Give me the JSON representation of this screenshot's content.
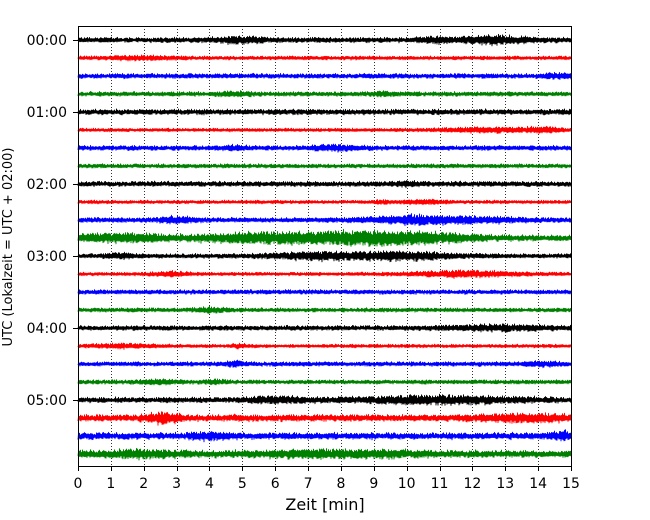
{
  "chart_data": {
    "type": "line",
    "title": "",
    "xlabel": "Zeit  [min]",
    "ylabel": "UTC (Lokalzeit = UTC + 02:00)",
    "xlim": [
      0,
      15
    ],
    "x_ticks": [
      0,
      1,
      2,
      3,
      4,
      5,
      6,
      7,
      8,
      9,
      10,
      11,
      12,
      13,
      14,
      15
    ],
    "x_tick_labels": [
      "0",
      "1",
      "2",
      "3",
      "4",
      "5",
      "6",
      "7",
      "8",
      "9",
      "10",
      "11",
      "12",
      "13",
      "14",
      "15"
    ],
    "y_tick_labels": [
      {
        "label": "00:00",
        "trace": 0
      },
      {
        "label": "01:00",
        "trace": 4
      },
      {
        "label": "02:00",
        "trace": 8
      },
      {
        "label": "03:00",
        "trace": 12
      },
      {
        "label": "04:00",
        "trace": 16
      },
      {
        "label": "05:00",
        "trace": 20
      }
    ],
    "grid": {
      "x": true,
      "y": false,
      "style": "dotted"
    },
    "trace_interval_min": 15,
    "trace_colors": [
      "#000000",
      "#ff0000",
      "#0000ff",
      "#008000"
    ],
    "traces": [
      {
        "start": "00:00",
        "base": 3.0,
        "bursts": [
          [
            4.9,
            0.6,
            2.4
          ],
          [
            12.6,
            1.0,
            3.5
          ],
          [
            10.8,
            0.4,
            2.2
          ]
        ]
      },
      {
        "start": "00:15",
        "base": 2.2,
        "bursts": [
          [
            2.0,
            0.8,
            1.8
          ]
        ]
      },
      {
        "start": "00:30",
        "base": 2.8,
        "bursts": [
          [
            14.6,
            0.4,
            1.8
          ]
        ]
      },
      {
        "start": "00:45",
        "base": 2.6,
        "bursts": [
          [
            4.8,
            0.4,
            1.6
          ],
          [
            9.3,
            0.3,
            1.6
          ]
        ]
      },
      {
        "start": "01:00",
        "base": 3.2,
        "bursts": []
      },
      {
        "start": "01:15",
        "base": 2.0,
        "bursts": [
          [
            12.5,
            1.4,
            2.0
          ],
          [
            14.2,
            0.4,
            2.6
          ]
        ]
      },
      {
        "start": "01:30",
        "base": 2.8,
        "bursts": [
          [
            7.8,
            0.6,
            2.0
          ],
          [
            4.8,
            0.3,
            1.6
          ]
        ]
      },
      {
        "start": "01:45",
        "base": 2.4,
        "bursts": []
      },
      {
        "start": "02:00",
        "base": 3.0,
        "bursts": [
          [
            10.0,
            0.3,
            1.8
          ]
        ]
      },
      {
        "start": "02:15",
        "base": 2.0,
        "bursts": [
          [
            9.3,
            0.2,
            1.6
          ],
          [
            10.5,
            0.5,
            2.0
          ]
        ]
      },
      {
        "start": "02:30",
        "base": 2.8,
        "bursts": [
          [
            3.0,
            0.5,
            2.6
          ],
          [
            10.0,
            1.1,
            3.6
          ],
          [
            12.0,
            1.2,
            2.6
          ]
        ]
      },
      {
        "start": "02:45",
        "base": 3.4,
        "bursts": [
          [
            1.4,
            1.4,
            3.2
          ],
          [
            5.7,
            1.7,
            4.2
          ],
          [
            8.5,
            1.7,
            4.6
          ],
          [
            10.4,
            1.5,
            3.8
          ]
        ]
      },
      {
        "start": "03:00",
        "base": 2.6,
        "bursts": [
          [
            1.3,
            0.4,
            2.0
          ],
          [
            7.4,
            1.3,
            3.5
          ],
          [
            10.0,
            1.3,
            3.8
          ]
        ]
      },
      {
        "start": "03:15",
        "base": 2.0,
        "bursts": [
          [
            2.9,
            0.5,
            1.8
          ],
          [
            11.8,
            1.4,
            3.0
          ]
        ]
      },
      {
        "start": "03:30",
        "base": 2.6,
        "bursts": []
      },
      {
        "start": "03:45",
        "base": 2.4,
        "bursts": [
          [
            4.0,
            0.4,
            1.8
          ]
        ]
      },
      {
        "start": "04:00",
        "base": 2.8,
        "bursts": [
          [
            12.8,
            1.4,
            2.2
          ]
        ]
      },
      {
        "start": "04:15",
        "base": 2.0,
        "bursts": [
          [
            1.4,
            0.8,
            1.8
          ],
          [
            4.9,
            0.2,
            1.6
          ]
        ]
      },
      {
        "start": "04:30",
        "base": 2.6,
        "bursts": [
          [
            4.8,
            0.3,
            1.6
          ],
          [
            14.2,
            0.5,
            1.6
          ]
        ]
      },
      {
        "start": "04:45",
        "base": 2.4,
        "bursts": [
          [
            2.5,
            0.5,
            2.0
          ],
          [
            4.2,
            0.3,
            1.6
          ]
        ]
      },
      {
        "start": "05:00",
        "base": 3.2,
        "bursts": [
          [
            11.0,
            2.2,
            3.2
          ],
          [
            6.0,
            0.8,
            2.4
          ]
        ]
      },
      {
        "start": "05:15",
        "base": 4.0,
        "bursts": [
          [
            2.6,
            0.4,
            4.8
          ],
          [
            13.6,
            1.2,
            2.6
          ]
        ]
      },
      {
        "start": "05:30",
        "base": 4.0,
        "bursts": [
          [
            14.8,
            0.4,
            2.6
          ],
          [
            4.0,
            0.5,
            2.2
          ]
        ]
      },
      {
        "start": "05:45",
        "base": 4.2,
        "bursts": [
          [
            8.0,
            2.0,
            2.6
          ],
          [
            2.0,
            1.0,
            2.4
          ]
        ]
      }
    ]
  }
}
